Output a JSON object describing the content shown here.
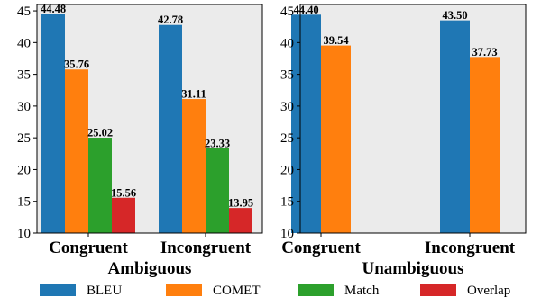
{
  "chart_data": [
    {
      "type": "bar",
      "xlabel": "Ambiguous",
      "ylabel": "",
      "categories": [
        "Congruent",
        "Incongruent"
      ],
      "series": [
        {
          "name": "BLEU",
          "values": [
            44.48,
            42.78
          ]
        },
        {
          "name": "COMET",
          "values": [
            35.76,
            31.11
          ]
        },
        {
          "name": "Match",
          "values": [
            25.02,
            23.33
          ]
        },
        {
          "name": "Overlap",
          "values": [
            15.56,
            13.95
          ]
        }
      ],
      "ylim": [
        10,
        46
      ],
      "yticks": [
        10,
        15,
        20,
        25,
        30,
        35,
        40,
        45
      ],
      "data_labels": true,
      "grid": false
    },
    {
      "type": "bar",
      "xlabel": "Unambiguous",
      "ylabel": "",
      "categories": [
        "Congruent",
        "Incongruent"
      ],
      "series": [
        {
          "name": "BLEU",
          "values": [
            44.4,
            43.5
          ]
        },
        {
          "name": "COMET",
          "values": [
            39.54,
            37.73
          ]
        }
      ],
      "ylim": [
        10,
        46
      ],
      "yticks": [
        10,
        15,
        20,
        25,
        30,
        35,
        40,
        45
      ],
      "data_labels": true,
      "grid": false
    }
  ],
  "legend": {
    "placement": "bottom",
    "entries": [
      {
        "name": "BLEU",
        "color": "#1f77b4"
      },
      {
        "name": "COMET",
        "color": "#ff7f0e"
      },
      {
        "name": "Match",
        "color": "#2ca02c"
      },
      {
        "name": "Overlap",
        "color": "#d62728"
      }
    ]
  },
  "colors": {
    "plot_background": "#ebebeb",
    "BLEU": "#1f77b4",
    "COMET": "#ff7f0e",
    "Match": "#2ca02c",
    "Overlap": "#d62728"
  }
}
